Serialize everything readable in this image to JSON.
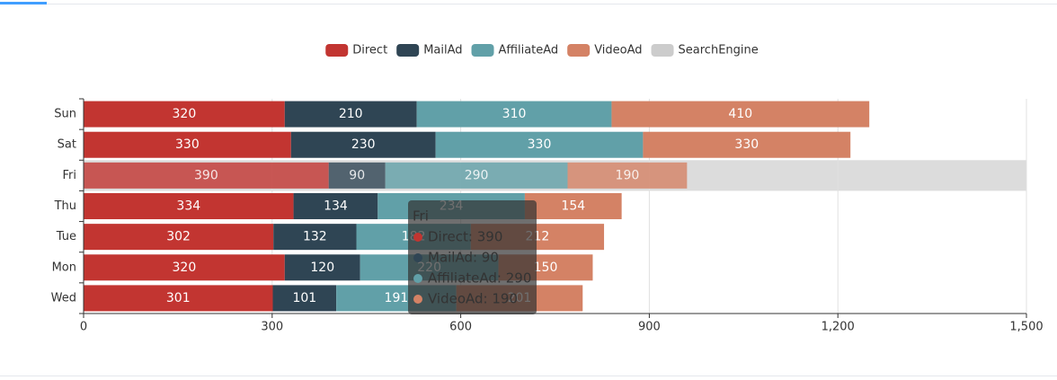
{
  "chart_data": {
    "type": "bar",
    "orientation": "horizontal",
    "stacked": true,
    "categories": [
      "Sun",
      "Sat",
      "Fri",
      "Thu",
      "Tue",
      "Mon",
      "Wed"
    ],
    "series": [
      {
        "name": "Direct",
        "color": "#c23531",
        "values": [
          320,
          330,
          390,
          334,
          302,
          320,
          301
        ]
      },
      {
        "name": "MailAd",
        "color": "#2f4554",
        "values": [
          210,
          230,
          90,
          134,
          132,
          120,
          101
        ]
      },
      {
        "name": "AffiliateAd",
        "color": "#61a0a8",
        "values": [
          310,
          330,
          290,
          234,
          182,
          220,
          191
        ]
      },
      {
        "name": "VideoAd",
        "color": "#d48265",
        "values": [
          410,
          330,
          190,
          154,
          212,
          150,
          201
        ]
      },
      {
        "name": "SearchEngine",
        "color": "#cccccc",
        "visible": false,
        "values": [
          null,
          null,
          null,
          null,
          null,
          null,
          null
        ]
      }
    ],
    "xlim": [
      0,
      1500
    ],
    "xticks": [
      0,
      300,
      600,
      900,
      {
        "value": 1200,
        "label": "1,200"
      },
      {
        "value": 1500,
        "label": "1,500"
      }
    ],
    "grid": true,
    "legend": "top",
    "tooltip": {
      "category_index": 2,
      "title": "Fri",
      "lines": [
        "Direct: 390",
        "MailAd: 90",
        "AffiliateAd: 290",
        "VideoAd: 190"
      ]
    }
  }
}
